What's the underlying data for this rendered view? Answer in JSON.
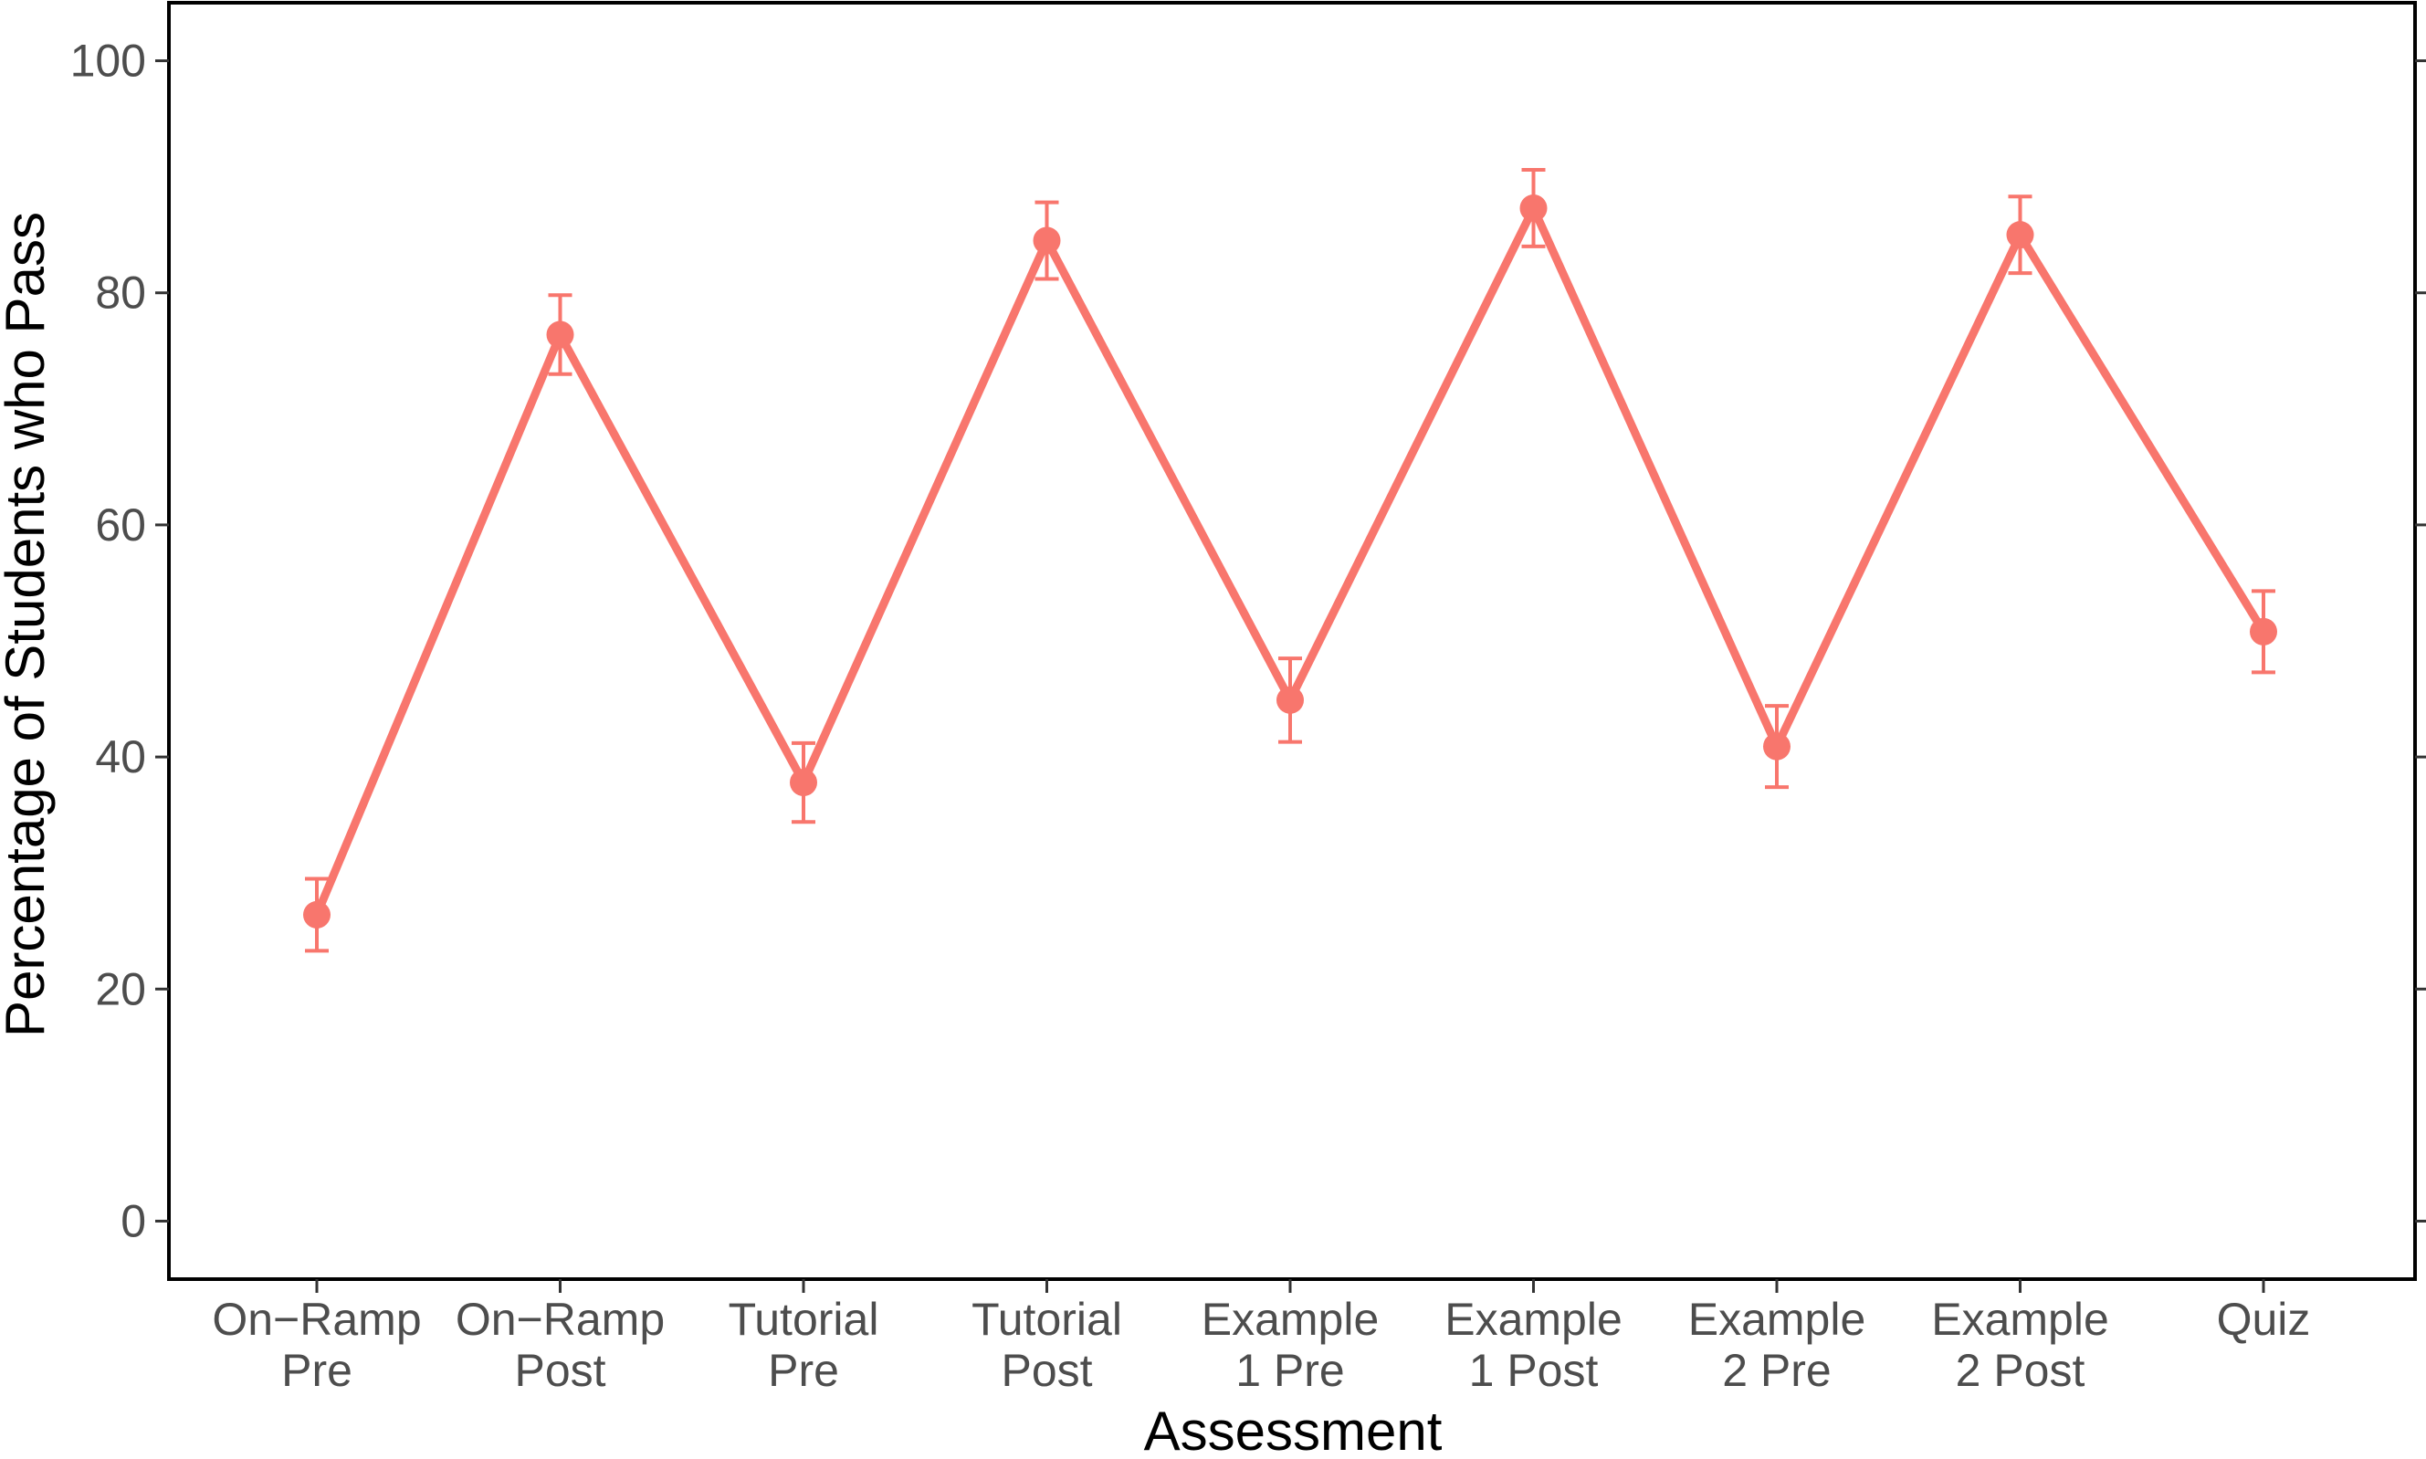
{
  "chart_data": {
    "type": "line",
    "title": "",
    "xlabel": "Assessment",
    "ylabel": "Percentage of Students who Pass",
    "categories": [
      [
        "On−Ramp",
        "Pre"
      ],
      [
        "On−Ramp",
        "Post"
      ],
      [
        "Tutorial",
        "Pre"
      ],
      [
        "Tutorial",
        "Post"
      ],
      [
        "Example",
        "1 Pre"
      ],
      [
        "Example",
        "1 Post"
      ],
      [
        "Example",
        "2 Pre"
      ],
      [
        "Example",
        "2 Post"
      ],
      [
        "Quiz"
      ]
    ],
    "series": [
      {
        "color": "#F8766D",
        "values": [
          26.4,
          76.4,
          37.8,
          84.5,
          44.9,
          87.3,
          40.9,
          85.0,
          50.8
        ],
        "error_low": [
          23.3,
          73.0,
          34.4,
          81.2,
          41.3,
          84.0,
          37.4,
          81.7,
          47.3
        ],
        "error_high": [
          29.5,
          79.8,
          41.2,
          87.8,
          48.5,
          90.6,
          44.4,
          88.3,
          54.3
        ]
      }
    ],
    "ylim": [
      -5,
      105
    ],
    "yticks": [
      0,
      20,
      40,
      60,
      80,
      100
    ],
    "grid": false,
    "legend": "none"
  }
}
